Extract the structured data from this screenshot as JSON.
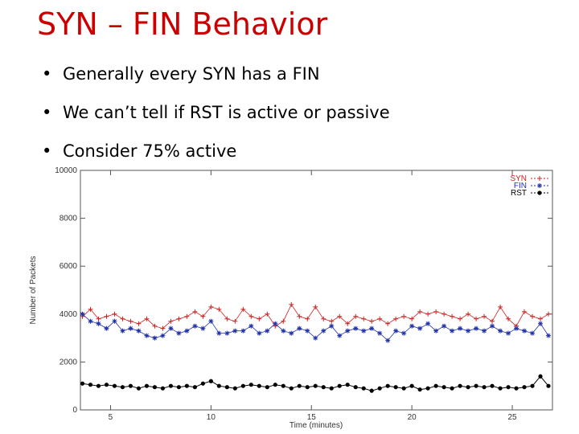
{
  "slide": {
    "title": "SYN – FIN Behavior",
    "bullets": [
      "Generally every SYN has a FIN",
      "We can’t tell if RST is active or passive",
      "Consider 75% active"
    ]
  },
  "chart_data": {
    "type": "line",
    "title": "",
    "xlabel": "Time (minutes)",
    "ylabel": "Number of Packets",
    "xlim": [
      3.5,
      27
    ],
    "ylim": [
      0,
      10000
    ],
    "xticks": [
      5,
      10,
      15,
      20,
      25
    ],
    "yticks": [
      0,
      2000,
      4000,
      6000,
      8000,
      10000
    ],
    "grid": false,
    "legend_position": "top-right",
    "series": [
      {
        "name": "SYN",
        "color": "#cc2222",
        "marker": "plus",
        "x": [
          3.6,
          4.0,
          4.4,
          4.8,
          5.2,
          5.6,
          6.0,
          6.4,
          6.8,
          7.2,
          7.6,
          8.0,
          8.4,
          8.8,
          9.2,
          9.6,
          10.0,
          10.4,
          10.8,
          11.2,
          11.6,
          12.0,
          12.4,
          12.8,
          13.2,
          13.6,
          14.0,
          14.4,
          14.8,
          15.2,
          15.6,
          16.0,
          16.4,
          16.8,
          17.2,
          17.6,
          18.0,
          18.4,
          18.8,
          19.2,
          19.6,
          20.0,
          20.4,
          20.8,
          21.2,
          21.6,
          22.0,
          22.4,
          22.8,
          23.2,
          23.6,
          24.0,
          24.4,
          24.8,
          25.2,
          25.6,
          26.0,
          26.4,
          26.8
        ],
        "values": [
          3900,
          4200,
          3800,
          3900,
          4000,
          3800,
          3700,
          3600,
          3800,
          3500,
          3400,
          3700,
          3800,
          3900,
          4100,
          3900,
          4300,
          4200,
          3800,
          3700,
          4200,
          3900,
          3800,
          4000,
          3500,
          3700,
          4400,
          3900,
          3800,
          4300,
          3800,
          3700,
          3900,
          3600,
          3900,
          3800,
          3700,
          3800,
          3600,
          3800,
          3900,
          3800,
          4100,
          4000,
          4100,
          4000,
          3900,
          3800,
          4000,
          3800,
          3900,
          3700,
          4300,
          3800,
          3500,
          4100,
          3900,
          3800,
          4000
        ]
      },
      {
        "name": "FIN",
        "color": "#2233aa",
        "marker": "star",
        "x": [
          3.6,
          4.0,
          4.4,
          4.8,
          5.2,
          5.6,
          6.0,
          6.4,
          6.8,
          7.2,
          7.6,
          8.0,
          8.4,
          8.8,
          9.2,
          9.6,
          10.0,
          10.4,
          10.8,
          11.2,
          11.6,
          12.0,
          12.4,
          12.8,
          13.2,
          13.6,
          14.0,
          14.4,
          14.8,
          15.2,
          15.6,
          16.0,
          16.4,
          16.8,
          17.2,
          17.6,
          18.0,
          18.4,
          18.8,
          19.2,
          19.6,
          20.0,
          20.4,
          20.8,
          21.2,
          21.6,
          22.0,
          22.4,
          22.8,
          23.2,
          23.6,
          24.0,
          24.4,
          24.8,
          25.2,
          25.6,
          26.0,
          26.4,
          26.8
        ],
        "values": [
          4000,
          3700,
          3600,
          3400,
          3700,
          3300,
          3400,
          3300,
          3100,
          3000,
          3100,
          3400,
          3200,
          3300,
          3500,
          3400,
          3700,
          3200,
          3200,
          3300,
          3300,
          3500,
          3200,
          3300,
          3600,
          3300,
          3200,
          3400,
          3300,
          3000,
          3300,
          3500,
          3100,
          3300,
          3400,
          3300,
          3400,
          3200,
          2900,
          3300,
          3200,
          3500,
          3400,
          3600,
          3300,
          3500,
          3300,
          3400,
          3300,
          3400,
          3300,
          3500,
          3300,
          3200,
          3400,
          3300,
          3200,
          3600,
          3100
        ]
      },
      {
        "name": "RST",
        "color": "#000000",
        "marker": "dot",
        "x": [
          3.6,
          4.0,
          4.4,
          4.8,
          5.2,
          5.6,
          6.0,
          6.4,
          6.8,
          7.2,
          7.6,
          8.0,
          8.4,
          8.8,
          9.2,
          9.6,
          10.0,
          10.4,
          10.8,
          11.2,
          11.6,
          12.0,
          12.4,
          12.8,
          13.2,
          13.6,
          14.0,
          14.4,
          14.8,
          15.2,
          15.6,
          16.0,
          16.4,
          16.8,
          17.2,
          17.6,
          18.0,
          18.4,
          18.8,
          19.2,
          19.6,
          20.0,
          20.4,
          20.8,
          21.2,
          21.6,
          22.0,
          22.4,
          22.8,
          23.2,
          23.6,
          24.0,
          24.4,
          24.8,
          25.2,
          25.6,
          26.0,
          26.4,
          26.8
        ],
        "values": [
          1100,
          1050,
          1000,
          1050,
          1000,
          950,
          1000,
          900,
          1000,
          950,
          900,
          1000,
          950,
          1000,
          950,
          1100,
          1200,
          1000,
          950,
          900,
          1000,
          1050,
          1000,
          950,
          1050,
          1000,
          900,
          1000,
          950,
          1000,
          950,
          900,
          1000,
          1050,
          950,
          900,
          800,
          900,
          1000,
          950,
          900,
          1000,
          850,
          900,
          1000,
          950,
          900,
          1000,
          950,
          1000,
          950,
          1000,
          900,
          950,
          900,
          950,
          1000,
          1400,
          1000
        ]
      }
    ]
  }
}
